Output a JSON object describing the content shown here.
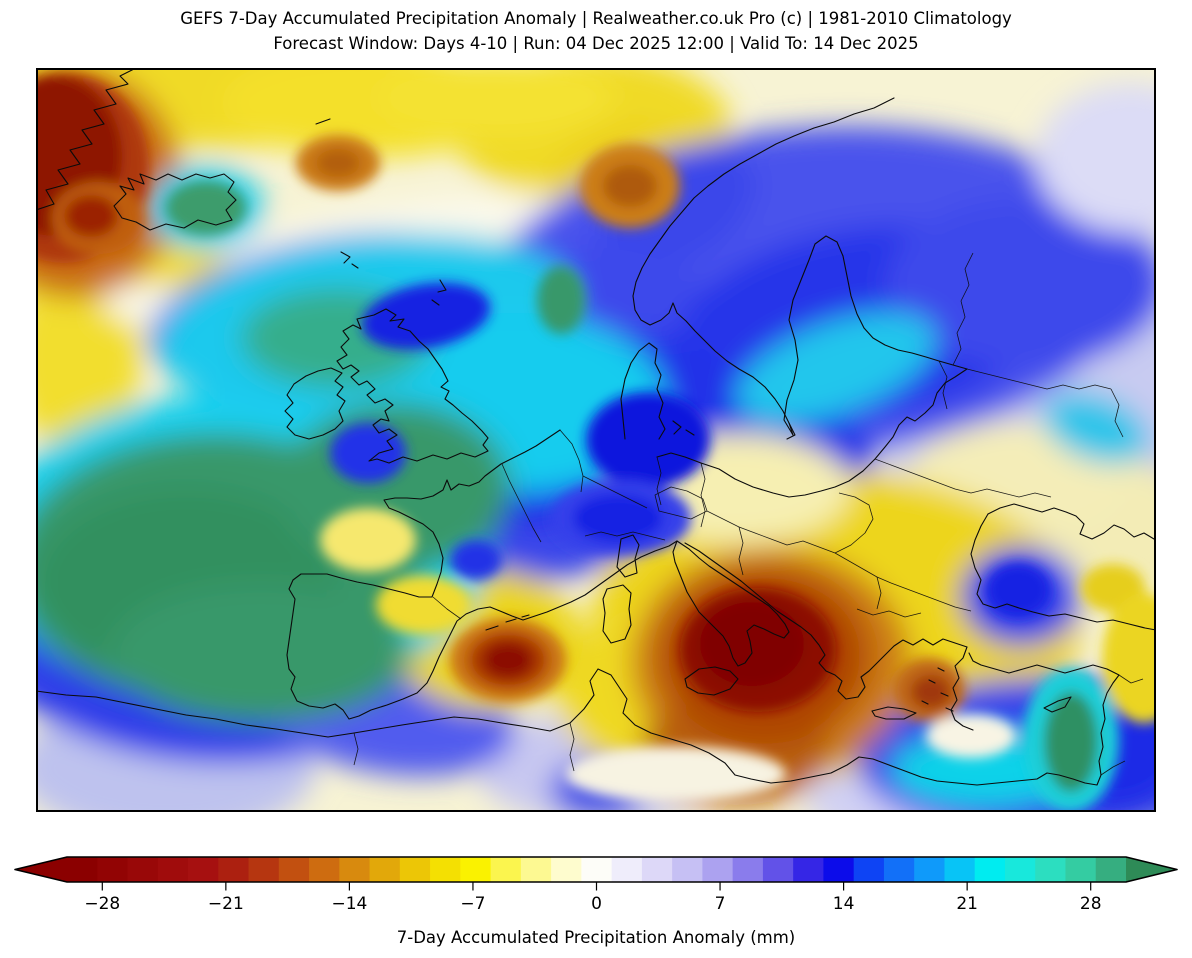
{
  "title": {
    "line1": "GEFS 7-Day Accumulated Precipitation Anomaly | Realweather.co.uk Pro (c) | 1981-2010 Climatology",
    "line2": "Forecast Window: Days 4-10 | Run: 04 Dec 2025 12:00 | Valid To: 14 Dec 2025"
  },
  "colorbar": {
    "label": "7-Day Accumulated Precipitation Anomaly (mm)",
    "vmin": -30,
    "vmax": 30,
    "ticks": [
      {
        "value": -28,
        "label": "−28"
      },
      {
        "value": -21,
        "label": "−21"
      },
      {
        "value": -14,
        "label": "−14"
      },
      {
        "value": -7,
        "label": "−7"
      },
      {
        "value": 0,
        "label": "0"
      },
      {
        "value": 7,
        "label": "7"
      },
      {
        "value": 14,
        "label": "14"
      },
      {
        "value": 21,
        "label": "21"
      },
      {
        "value": 28,
        "label": "28"
      }
    ],
    "segment_colors": [
      "#8B0000",
      "#920404",
      "#990808",
      "#A00C0C",
      "#A61010",
      "#AC2010",
      "#B63610",
      "#C25010",
      "#CE6C10",
      "#D88A0E",
      "#E2A80A",
      "#ECC606",
      "#F4E002",
      "#FAF200",
      "#FBF54E",
      "#FDF992",
      "#FEFCCE",
      "#FDFDF8",
      "#EFEDFB",
      "#DDD8F8",
      "#C6C0F4",
      "#ACA2F0",
      "#8A7CEC",
      "#6252E8",
      "#3526E6",
      "#0C0CEA",
      "#0E44F4",
      "#1270F8",
      "#0F9AFA",
      "#08C4F6",
      "#00ECF0",
      "#18E8DC",
      "#2CDEC0",
      "#34CCA2",
      "#36AE80"
    ],
    "left_arrow_color": "#8B0000",
    "right_arrow_color": "#2E8B57",
    "outline_color": "#000000"
  },
  "map": {
    "background": "#F7F3D4",
    "frame_color": "#000000",
    "coast_color": "#0b0b0b",
    "blobs": [
      [
        "a",
        1000,
        300,
        170,
        190,
        0,
        "#C8CBF1"
      ],
      [
        "a",
        610,
        400,
        120,
        55,
        0,
        "#D8D7F7"
      ],
      [
        "a",
        330,
        555,
        130,
        85,
        0,
        "#E2E0FA"
      ],
      [
        "a",
        560,
        700,
        120,
        55,
        0,
        "#C8C8F0"
      ],
      [
        "a",
        130,
        700,
        150,
        70,
        0,
        "#BEC2EE"
      ],
      [
        "a",
        900,
        732,
        130,
        45,
        0,
        "#D0D0F4"
      ],
      [
        "a",
        180,
        18,
        260,
        62,
        0,
        "#F0DA26"
      ],
      [
        "a",
        55,
        150,
        95,
        115,
        0,
        "#EFD51C"
      ],
      [
        "a",
        335,
        35,
        150,
        55,
        0,
        "#F4E02C"
      ],
      [
        "a",
        555,
        60,
        140,
        75,
        0,
        "#F0DA26"
      ],
      [
        "a",
        595,
        130,
        85,
        75,
        0,
        "#EDD21A"
      ],
      [
        "a",
        460,
        30,
        120,
        40,
        0,
        "#F4E231"
      ],
      [
        "a",
        40,
        290,
        65,
        95,
        0,
        "#F2DE2E"
      ],
      [
        "a",
        150,
        212,
        95,
        45,
        0,
        "#F2DE2E"
      ],
      [
        "a",
        360,
        162,
        180,
        26,
        -8,
        "#FBF9EC"
      ],
      [
        "a",
        150,
        245,
        85,
        24,
        10,
        "#FAF8EA"
      ],
      [
        "a",
        620,
        190,
        90,
        22,
        -35,
        "#FAF8EA"
      ],
      [
        "a",
        40,
        115,
        105,
        115,
        0,
        "#C96C12"
      ],
      [
        "a",
        770,
        225,
        330,
        165,
        -5,
        "#4953EC"
      ],
      [
        "a",
        640,
        140,
        85,
        55,
        -30,
        "#3A46EA"
      ],
      [
        "a",
        560,
        285,
        140,
        105,
        0,
        "#3D49EB"
      ],
      [
        "a",
        295,
        245,
        185,
        75,
        -10,
        "#4953EC"
      ],
      [
        "a",
        420,
        305,
        160,
        65,
        -8,
        "#1B2BE7"
      ],
      [
        "a",
        830,
        255,
        190,
        95,
        -8,
        "#2636E9"
      ],
      [
        "a",
        990,
        215,
        140,
        85,
        0,
        "#3D49EB"
      ],
      [
        "a",
        600,
        350,
        115,
        85,
        0,
        "#2132E8"
      ],
      [
        "a",
        745,
        382,
        95,
        55,
        15,
        "#1F30E8"
      ],
      [
        "a",
        520,
        425,
        135,
        85,
        -15,
        "#3A46EA"
      ],
      [
        "a",
        505,
        405,
        85,
        50,
        -15,
        "#1C2CE7"
      ],
      [
        "a",
        190,
        520,
        270,
        175,
        0,
        "#2E3CE9"
      ],
      [
        "a",
        350,
        645,
        130,
        60,
        10,
        "#515BEE"
      ],
      [
        "a",
        562,
        722,
        48,
        30,
        0,
        "#4A55E8"
      ],
      [
        "a",
        1100,
        430,
        60,
        40,
        15,
        "#3F4AEB"
      ],
      [
        "a",
        1095,
        90,
        95,
        75,
        0,
        "#DCDCF6"
      ],
      [
        "a",
        1040,
        460,
        130,
        80,
        0,
        "#F3ECB6"
      ],
      [
        "a",
        980,
        410,
        110,
        55,
        0,
        "#F4EDB8"
      ],
      [
        "a",
        800,
        555,
        245,
        150,
        0,
        "#EDD51E"
      ],
      [
        "a",
        645,
        622,
        125,
        90,
        0,
        "#EFD922"
      ],
      [
        "a",
        452,
        572,
        95,
        70,
        0,
        "#EBD51F"
      ],
      [
        "a",
        700,
        420,
        115,
        55,
        0,
        "#F6EFB2"
      ],
      [
        "a",
        985,
        528,
        60,
        50,
        0,
        "#2E3DEA"
      ],
      [
        "a",
        1010,
        690,
        190,
        80,
        0,
        "#3642EA"
      ],
      [
        "a",
        1075,
        680,
        75,
        62,
        0,
        "#1C2CE6"
      ],
      [
        "a",
        200,
        480,
        250,
        155,
        0,
        "#12D0EF"
      ],
      [
        "a",
        330,
        255,
        210,
        85,
        -8,
        "#1BC9ED"
      ],
      [
        "a",
        480,
        335,
        150,
        90,
        0,
        "#18CCEE"
      ],
      [
        "a",
        800,
        300,
        105,
        45,
        -20,
        "#22C6EC"
      ],
      [
        "a",
        1060,
        360,
        55,
        32,
        20,
        "#2FC5EA"
      ],
      [
        "a",
        950,
        702,
        95,
        38,
        0,
        "#10D2E9"
      ],
      [
        "a",
        170,
        140,
        58,
        42,
        0,
        "#22CBE9"
      ],
      [
        "a",
        300,
        270,
        95,
        50,
        0,
        "#35AE8C"
      ],
      [
        "a",
        180,
        500,
        205,
        135,
        0,
        "#37986B"
      ],
      [
        "a",
        150,
        515,
        150,
        95,
        0,
        "#32905F"
      ],
      [
        "a",
        360,
        420,
        115,
        85,
        0,
        "#37986B"
      ],
      [
        "a",
        225,
        585,
        150,
        70,
        0,
        "#37986B"
      ],
      [
        "a",
        735,
        595,
        140,
        115,
        0,
        "#CC7C12"
      ],
      [
        "a",
        700,
        682,
        95,
        55,
        0,
        "#B85E10"
      ],
      [
        "a",
        728,
        588,
        105,
        88,
        0,
        "#AE4406"
      ],
      [
        "b",
        28,
        100,
        85,
        95,
        0,
        "#AE370C"
      ],
      [
        "b",
        18,
        88,
        68,
        80,
        0,
        "#8E1404"
      ],
      [
        "b",
        62,
        150,
        46,
        36,
        0,
        "#C05E10"
      ],
      [
        "b",
        55,
        148,
        27,
        21,
        0,
        "#9B2406"
      ],
      [
        "b",
        302,
        95,
        42,
        28,
        0,
        "#CA7A16"
      ],
      [
        "b",
        302,
        95,
        22,
        14,
        0,
        "#B25E0E"
      ],
      [
        "b",
        594,
        118,
        50,
        42,
        0,
        "#CC7E16"
      ],
      [
        "b",
        594,
        118,
        27,
        21,
        0,
        "#AE5A0C"
      ],
      [
        "b",
        612,
        372,
        62,
        48,
        0,
        "#0915DD"
      ],
      [
        "b",
        585,
        450,
        70,
        38,
        0,
        "#3440EA"
      ],
      [
        "b",
        582,
        450,
        45,
        24,
        0,
        "#1322E3"
      ],
      [
        "b",
        332,
        385,
        38,
        30,
        0,
        "#2133E8"
      ],
      [
        "b",
        390,
        248,
        65,
        32,
        -10,
        "#1322E2"
      ],
      [
        "b",
        440,
        492,
        26,
        20,
        0,
        "#2232E6"
      ],
      [
        "b",
        982,
        522,
        32,
        27,
        0,
        "#1524E3"
      ],
      [
        "b",
        170,
        140,
        40,
        27,
        0,
        "#3C9C6C"
      ],
      [
        "b",
        525,
        232,
        24,
        34,
        0,
        "#37986B"
      ],
      [
        "b",
        1035,
        672,
        48,
        72,
        0,
        "#1CCFD9"
      ],
      [
        "b",
        1035,
        674,
        27,
        50,
        0,
        "#2F9063"
      ],
      [
        "b",
        388,
        537,
        48,
        30,
        0,
        "#F0DC33"
      ],
      [
        "b",
        332,
        472,
        48,
        32,
        0,
        "#F6E86E"
      ],
      [
        "b",
        1077,
        520,
        32,
        24,
        0,
        "#E6CE1E"
      ],
      [
        "b",
        1108,
        590,
        42,
        65,
        0,
        "#EBD522"
      ],
      [
        "b",
        640,
        706,
        110,
        28,
        0,
        "#F7F3E2"
      ],
      [
        "b",
        935,
        668,
        45,
        22,
        0,
        "#F8F4E4"
      ],
      [
        "b",
        722,
        582,
        78,
        62,
        0,
        "#8C0E00"
      ],
      [
        "b",
        716,
        576,
        52,
        42,
        0,
        "#800400"
      ],
      [
        "b",
        893,
        622,
        36,
        32,
        0,
        "#C06812"
      ],
      [
        "b",
        895,
        624,
        20,
        17,
        0,
        "#A03808"
      ],
      [
        "b",
        472,
        592,
        58,
        42,
        0,
        "#CA7412"
      ],
      [
        "b",
        472,
        592,
        40,
        29,
        0,
        "#AC3A04"
      ],
      [
        "b",
        472,
        592,
        25,
        18,
        0,
        "#8C1000"
      ]
    ],
    "coastlines": [
      "M100,0 L84,8 L92,16 L70,22 L80,36 L58,42 L68,56 L46,62 L56,76 L34,82 L44,96 L22,102 L32,116 L10,122 L18,136 L0,142",
      "M78,138 L90,126 L84,118 L98,122 L92,110 L108,116 L104,106 L120,112 L132,106 L146,112 L160,106 L174,110 L188,106 L198,114 L192,124 L200,132 L190,142 L196,152 L180,157 L162,152 L148,160 L130,156 L114,162 L100,154 L86,150 Z",
      "M280,56 l14,-5",
      "M305,184 l9,5 l-6,6 M316,196 l6,4",
      "M404,212 l6,10 l-8,2 M396,232 l7,5",
      "M338,247 L350,241 L360,247 L354,253 L368,251 L362,259 L374,263 L383,273 L392,281 L399,291 L406,301 L412,313 L405,319 L413,323 L409,331 L417,337 L426,345 L436,353 L446,363 L452,370 L447,377 L452,383 L439,389 L425,385 L411,391 L397,387 L381,393 L367,389 L353,395 L341,391 L333,393 L343,385 L357,381 L351,373 L361,367 L353,361 L343,365 L337,357 L345,351 L353,353 L349,343 L357,337 L349,331 L339,335 L331,327 L339,321 L331,313 L323,317 L315,309 L323,303 L315,297 L307,301 L301,293 L311,287 L305,279 L313,271 L307,263 L317,257 L325,261 L321,251 Z",
      "M258,316 L270,308 L282,303 L295,300 L306,305 L299,313 L307,319 L301,327 L309,333 L303,343 L307,353 L299,361 L287,367 L273,371 L259,367 L251,359 L257,351 L249,343 L257,335 L251,327 Z",
      "M858,30 L838,40 L818,46 L798,54 L778,60 L758,68 L740,76 L722,86 L704,96 L688,106 L672,118 L658,130 L646,144 L634,158 L624,172 L614,186 L606,200 L600,214 L597,228 L599,242 L605,252 L614,257 L625,252 L633,245 L637,235 L641,245 L650,253 L659,263 L669,273 L679,283 L691,293 L703,301 L717,309 L729,319 L739,331 L747,343 L753,355 L757,367",
      "M757,367 L748,352 L751,332 L758,312 L762,292 L759,272 L753,252 L757,232 L765,212 L773,192 L779,176 L790,168 L801,174 L807,188 L811,208 L815,228 L821,246 L828,260 L837,270 L849,277 L862,282 L876,285 L890,289 L903,293 L917,297 L931,301",
      "M931,301 L919,309 L909,315 L901,325 L897,337 L889,345 L879,353 L871,349 L863,357 L857,369 L849,379 L839,391 L827,403 L813,413 L799,419 L785,423 L769,427 L753,429 L737,425 L717,419 L699,411 L683,401 L665,395 L649,389 L635,385 L621,389",
      "M589,371 L587,351 L585,331 L589,311 L595,295 L603,283 L613,275 L621,281 L619,295 L625,307 L621,321 L627,335 L623,349 L629,361 L623,371 M637,353 l8,6 l-7,7 M650,362 l8,5",
      "M753,355 l6,12 l-8,4",
      "M524,362 L512,370 L500,378 L489,384 L477,390 L465,396 L457,402 L449,408 L443,414 L433,418 L423,416 L415,422 L411,412 L407,422 L397,428 L385,431 L371,430 L359,430 L348,432 L353,440 L363,444 L375,450 L387,456 L397,464 L403,476 L407,490 L405,504 L401,516 L396,529 L383,529 L369,525 L353,521 L337,517 L321,514 L305,510 L291,506 L265,506 L257,512 L253,521 L259,531 L257,545 L255,559 L253,573 L251,587 L253,601 L259,609 L255,621 L261,633 L273,638 L287,640 L299,636 L307,642 L313,651 L323,648 L335,642 L351,637 L367,631 L381,625 L391,615 L397,603 L403,589 L409,577 L415,565 L421,553 L430,546 L442,541 L454,539 L464,543 L476,548 L487,552 L499,548 L511,544 L523,539 L535,534 L549,527 L563,517 L577,507 L591,497 L605,489 L619,483 L633,478 L641,473",
      "M641,473 L653,481 L663,490 L673,498 L685,506 L697,514 L709,522 L721,530 L733,538 L741,546 L749,556 L753,564 L748,570 L738,566 L728,561 L718,557 L711,563 L714,573 L716,585 L709,595 L702,598 L697,590 L693,578 L687,568 L679,560 L671,552 L663,544 L657,534 L651,524 L647,514 L643,504 L639,494 L637,484 Z",
      "M649,611 L663,601 L679,599 L694,603 L702,611 L694,621 L678,627 L662,625 L651,619 Z",
      "M571,521 L587,517 L595,525 L593,541 L595,557 L589,571 L575,575 L567,563 L569,545 L567,531 Z",
      "M585,471 L597,467 L603,477 L599,491 L601,505 L589,509 L581,499 L583,485 Z",
      "M450,562 l12,-4 M470,554 l10,-3 M486,549 l7,-2",
      "M649,475 L663,483 L677,493 L691,503 L705,513 L717,523 L729,533 L741,543 L753,551 L765,559 L775,567 L783,577 L789,587 L783,595 L790,603 L799,607 L806,613 L802,623 L810,631 L822,629 L829,619 L825,609 L833,603 L841,595 L849,587 L858,578 L867,572 L877,577 L887,571 L897,577 L907,571 L919,575 L931,579",
      "M931,579 L927,590 L919,598 L923,610 L917,620 L921,632 L915,642 L919,652 L927,658 L937,662",
      "M902,600 l6,3 M893,612 l6,3 M905,625 l7,3 M886,633 l6,3 M910,640 l7,3",
      "M836,643 L852,639 L868,641 L880,645 L868,651 L850,651 L839,648 Z",
      "M1008,640 L1022,633 L1035,629 L1029,639 L1016,644 Z",
      "M0,623 L30,627 L60,629 L90,635 L120,641 L150,647 L180,651 L210,657 L240,661 L266,665 L292,669 L318,665 L342,661 L366,657 L392,653 L418,649 L442,651 L466,655 L492,659 L514,663 L534,655 L548,641 L558,627 L554,613 L562,601 L575,607 L583,619 L591,631 L587,645 L599,657 L615,665 L635,671 L655,677 L673,685 L689,695 L699,707 L715,711 L735,715 L755,713 L775,709 L795,705 L811,697 L823,689 L837,691 L853,697 L869,703 L885,709 L901,713 L921,715 L941,717 L961,715 L981,713 L1001,711 L1011,705 L1023,707 L1037,711 L1049,715 L1061,717 L1065,707 L1063,693 L1067,679 L1065,665 L1069,651 L1067,637 L1071,625 L1077,615 L1083,607 L1071,601 L1057,597 L1043,601 L1029,605 L1015,601 L1001,597 L987,601 L973,605 L959,601 L945,597 L937,593 L933,585",
      "M952,446 L945,458 L939,472 L935,486 L939,500 L945,512 L941,526 L947,536 L959,540 L971,536 L983,540 L997,544 L1013,548 L1029,546 L1045,550 L1061,554 L1077,552 L1093,556 L1109,560 L1120,562",
      "M952,446 L964,440 L978,436 L992,440 L1006,444 L1018,440 L1030,444 L1040,448 L1048,456 L1044,466 L1056,471 L1068,465 L1078,457 L1088,461 L1098,469 L1108,465 L1118,471"
    ],
    "borders": [
      "M466,396 L473,412 L481,428 L489,444 L497,460 L505,474",
      "M397,529 L411,541 L425,551",
      "M524,362 L536,376 L543,392 L547,408 L545,424",
      "M621,389 L625,405 L621,421 L625,437",
      "M665,395 L669,411 L665,427 L669,443 L665,459",
      "M619,427 L635,419 L651,423 L667,431 L671,443 L655,451 L639,447 L623,443 Z",
      "M547,408 L563,416 L579,424 L595,432 L611,440",
      "M549,468 L565,464 L581,468 L597,464 L613,468 L629,472",
      "M671,443 L687,451 L703,459 L719,465 L735,471",
      "M735,471 L751,477 L767,473 L783,479 L799,485",
      "M799,485 L815,477 L829,465 L837,451 L833,437 L819,429 L803,425",
      "M799,485 L813,493 L827,501 L841,509 L855,515",
      "M821,541 L837,547 L853,543 L869,549 L885,545",
      "M855,515 L871,521 L887,527 L903,533 L919,539 L935,543",
      "M839,391 L855,397 L871,403 L887,409 L903,415",
      "M903,293 L911,309 L907,325 L911,341",
      "M931,301 L947,305 L963,309 L979,313 L995,317",
      "M917,297 L925,281 L921,265 L929,249 L925,233 L933,217 L929,201 L937,185",
      "M703,459 L707,475 L703,491 L707,507",
      "M841,509 L845,525 L841,541",
      "M903,415 L919,421 L935,425 L951,421 L967,425 L983,429 L999,425 L1015,429",
      "M995,317 L1011,321 L1027,317 L1043,321 L1059,317 L1075,321",
      "M1075,321 L1083,337 L1079,353 L1087,369",
      "M534,655 L538,671 L534,687 L538,703",
      "M318,665 L322,681 L318,697",
      "M1065,707 L1077,699 L1089,693",
      "M1083,607 L1095,615 L1107,611"
    ]
  }
}
